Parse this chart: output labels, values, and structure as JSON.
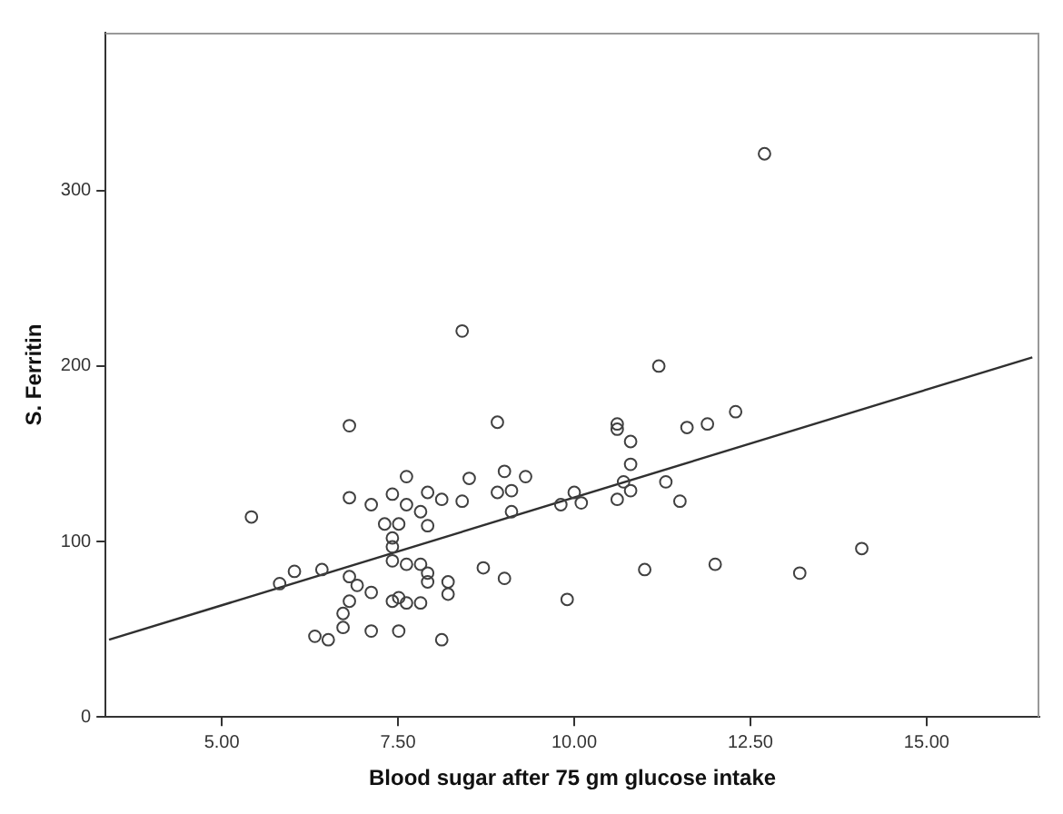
{
  "chart_data": {
    "type": "scatter",
    "xlabel": "Blood sugar after 75 gm glucose intake",
    "ylabel": "S. Ferritin",
    "xlim": [
      3.35,
      16.6
    ],
    "ylim": [
      0,
      390
    ],
    "xticks": [
      {
        "value": 5,
        "label": "5.00"
      },
      {
        "value": 7.5,
        "label": "7.50"
      },
      {
        "value": 10,
        "label": "10.00"
      },
      {
        "value": 12.5,
        "label": "12.50"
      },
      {
        "value": 15,
        "label": "15.00"
      }
    ],
    "yticks": [
      0,
      100,
      200,
      300
    ],
    "grid": false,
    "marker": "circle",
    "series": [
      {
        "type": "scatter",
        "color": "#404040",
        "x": [
          5.42,
          5.82,
          6.03,
          6.42,
          6.81,
          6.81,
          6.81,
          6.81,
          6.72,
          6.72,
          6.32,
          6.51,
          6.92,
          7.12,
          7.12,
          7.12,
          7.31,
          7.42,
          7.42,
          7.42,
          7.42,
          7.42,
          7.51,
          7.51,
          7.51,
          7.62,
          7.62,
          7.62,
          7.62,
          7.82,
          7.82,
          7.82,
          7.92,
          7.92,
          7.92,
          7.92,
          8.12,
          8.21,
          8.21,
          8.12,
          8.41,
          8.41,
          8.51,
          8.71,
          8.91,
          8.91,
          9.01,
          9.01,
          9.11,
          9.11,
          9.31,
          9.81,
          9.9,
          10.0,
          10.1,
          10.61,
          10.61,
          10.61,
          10.7,
          10.8,
          10.8,
          10.8,
          11.0,
          11.2,
          11.3,
          11.5,
          11.6,
          11.89,
          12.0,
          12.29,
          12.7,
          13.2,
          14.08
        ],
        "values": [
          114,
          76,
          83,
          84,
          166,
          125,
          80,
          66,
          59,
          51,
          46,
          44,
          75,
          121,
          71,
          49,
          110,
          127,
          102,
          97,
          89,
          66,
          110,
          68,
          49,
          137,
          121,
          87,
          65,
          117,
          87,
          65,
          128,
          109,
          82,
          77,
          124,
          77,
          70,
          44,
          220,
          123,
          136,
          85,
          168,
          128,
          140,
          79,
          129,
          117,
          137,
          121,
          67,
          128,
          122,
          167,
          164,
          124,
          134,
          157,
          144,
          129,
          84,
          200,
          134,
          123,
          165,
          167,
          87,
          174,
          321,
          82,
          96
        ]
      },
      {
        "type": "line",
        "color": "#303030",
        "marker": "none",
        "line_style": "solid",
        "x": [
          3.4,
          16.5
        ],
        "values": [
          44,
          205
        ]
      }
    ]
  }
}
